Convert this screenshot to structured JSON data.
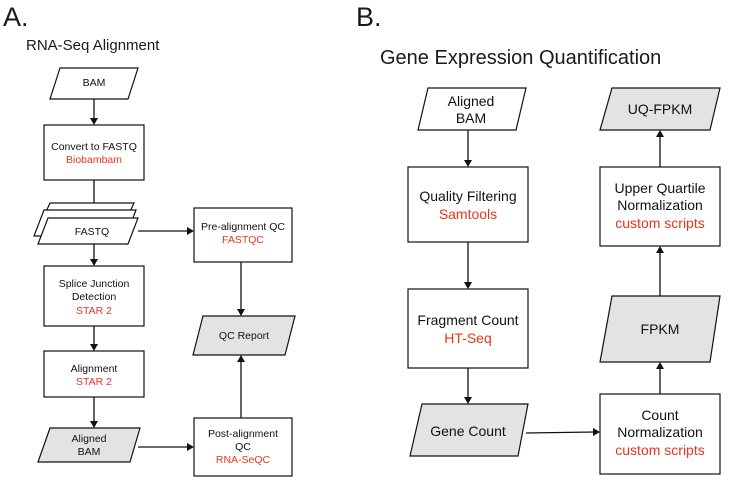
{
  "panel_a": {
    "letter": "A.",
    "title": "RNA-Seq Alignment",
    "nodes": {
      "bam": "BAM",
      "convert_line1": "Convert to FASTQ",
      "convert_tool": "Biobambam",
      "fastq": "FASTQ",
      "splice_line1": "Splice Junction",
      "splice_line2": "Detection",
      "splice_tool": "STAR 2",
      "alignment_line1": "Alignment",
      "alignment_tool": "STAR 2",
      "aligned_line1": "Aligned",
      "aligned_line2": "BAM",
      "prealign_line1": "Pre-alignment QC",
      "prealign_tool": "FASTQC",
      "qc_report": "QC Report",
      "postalign_line1": "Post-alignment",
      "postalign_line2": "QC",
      "postalign_tool": "RNA-SeQC"
    }
  },
  "panel_b": {
    "letter": "B.",
    "title": "Gene Expression Quantification",
    "nodes": {
      "aligned_line1": "Aligned",
      "aligned_line2": "BAM",
      "quality_line1": "Quality Filtering",
      "quality_tool": "Samtools",
      "fragment_line1": "Fragment Count",
      "fragment_tool": "HT-Seq",
      "gene_count": "Gene Count",
      "count_norm_line1": "Count",
      "count_norm_line2": "Normalization",
      "count_norm_tool": "custom scripts",
      "fpkm": "FPKM",
      "uq_line1": "Upper Quartile",
      "uq_line2": "Normalization",
      "uq_tool": "custom scripts",
      "uq_fpkm": "UQ-FPKM"
    }
  },
  "colors": {
    "tool_text": "#e8351c",
    "gray_fill": "#e3e3e3",
    "stroke": "#111111"
  }
}
